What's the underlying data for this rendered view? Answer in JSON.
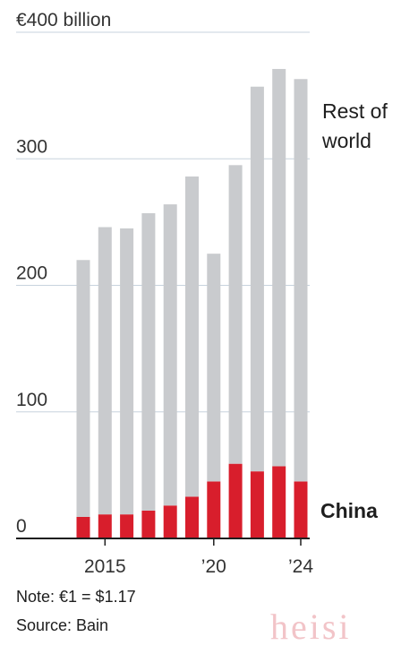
{
  "chart_data": {
    "type": "bar",
    "stacked": true,
    "categories": [
      "2014",
      "2015",
      "2016",
      "2017",
      "2018",
      "2019",
      "2020",
      "2021",
      "2022",
      "2023",
      "2024"
    ],
    "series": [
      {
        "name": "China",
        "color": "#d81e2c",
        "values": [
          17,
          19,
          19,
          22,
          26,
          33,
          45,
          59,
          53,
          57,
          45
        ]
      },
      {
        "name": "Rest of world",
        "color": "#c9cbce",
        "values": [
          203,
          227,
          226,
          235,
          238,
          253,
          180,
          236,
          304,
          314,
          318
        ]
      }
    ],
    "y_ticks": [
      {
        "value": 0,
        "label": "0"
      },
      {
        "value": 100,
        "label": "100"
      },
      {
        "value": 200,
        "label": "200"
      },
      {
        "value": 300,
        "label": "300"
      },
      {
        "value": 400,
        "label": "€400 billion"
      }
    ],
    "x_ticks": [
      {
        "category": "2015",
        "label": "2015"
      },
      {
        "category": "2020",
        "label": "’20"
      },
      {
        "category": "2024",
        "label": "’24"
      }
    ],
    "ylim": [
      0,
      400
    ],
    "grid": true,
    "legend": {
      "rest_line1": "Rest of",
      "rest_line2": "world",
      "china": "China"
    }
  },
  "notes": {
    "note": "Note: €1 = $1.17",
    "source": "Source: Bain"
  },
  "watermark": "heisi"
}
